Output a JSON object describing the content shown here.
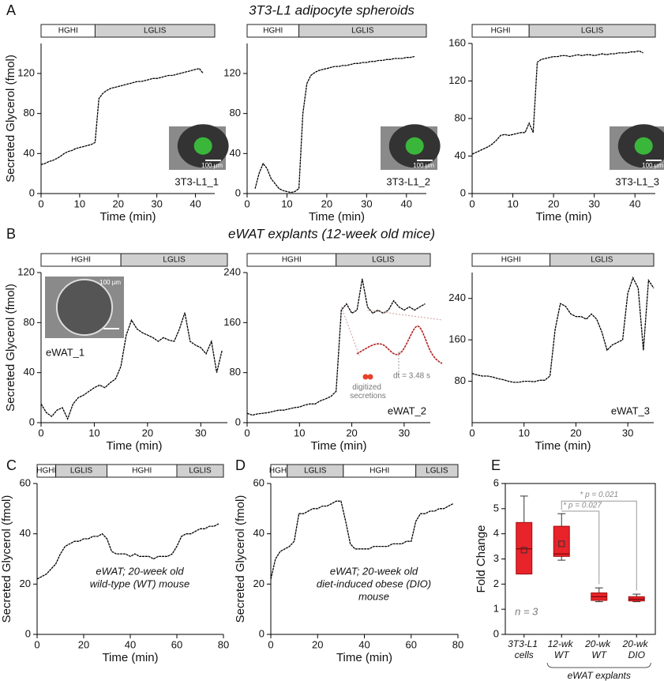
{
  "sections": [
    {
      "label": "A",
      "title": "3T3-L1 adipocyte spheroids"
    },
    {
      "label": "B",
      "title": "eWAT explants (12-week old mice)"
    },
    {
      "label": "C"
    },
    {
      "label": "D"
    },
    {
      "label": "E"
    }
  ],
  "chart_data": [
    {
      "type": "line",
      "ylabel": "Secreted Glycerol (fmol)",
      "xlabel": "Time (min)",
      "color": "#000000",
      "xlim": [
        0,
        45
      ],
      "xticks": [
        0,
        10,
        20,
        30,
        40
      ],
      "ylim": [
        0,
        150
      ],
      "yticks": [
        0,
        40,
        80,
        120
      ],
      "phases": [
        {
          "label": "HGHI",
          "start": 0,
          "end": 14
        },
        {
          "label": "LGLIS",
          "start": 14,
          "end": 45
        }
      ],
      "inset_label": "3T3-L1_1",
      "scale_bar": "100 µm",
      "x": [
        0,
        1,
        2,
        3,
        4,
        5,
        6,
        7,
        8,
        9,
        10,
        11,
        12,
        13,
        14,
        15,
        16,
        17,
        18,
        19,
        20,
        21,
        22,
        23,
        24,
        25,
        26,
        27,
        28,
        29,
        30,
        31,
        32,
        33,
        34,
        35,
        36,
        37,
        38,
        39,
        40,
        41,
        42
      ],
      "values": [
        29,
        30,
        32,
        33,
        35,
        37,
        40,
        42,
        43,
        45,
        46,
        47,
        48,
        49,
        51,
        95,
        100,
        103,
        105,
        106,
        107,
        108,
        109,
        110,
        111,
        112,
        112,
        113,
        114,
        115,
        115,
        116,
        117,
        118,
        118,
        119,
        120,
        121,
        122,
        123,
        124,
        125,
        120
      ]
    },
    {
      "type": "line",
      "xlabel": "Time (min)",
      "color": "#000000",
      "xlim": [
        0,
        45
      ],
      "xticks": [
        0,
        10,
        20,
        30,
        40
      ],
      "ylim": [
        0,
        150
      ],
      "yticks": [
        0,
        40,
        80,
        120
      ],
      "phases": [
        {
          "label": "HGHI",
          "start": 0,
          "end": 13
        },
        {
          "label": "LGLIS",
          "start": 13,
          "end": 45
        }
      ],
      "inset_label": "3T3-L1_2",
      "scale_bar": "100 µm",
      "x": [
        2,
        3,
        4,
        5,
        6,
        7,
        8,
        9,
        10,
        11,
        12,
        13,
        14,
        15,
        16,
        17,
        18,
        19,
        20,
        21,
        22,
        23,
        24,
        25,
        26,
        27,
        28,
        29,
        30,
        31,
        32,
        33,
        34,
        35,
        36,
        37,
        38,
        39,
        40,
        41,
        42
      ],
      "values": [
        5,
        20,
        30,
        25,
        15,
        10,
        5,
        3,
        2,
        1,
        2,
        5,
        80,
        110,
        118,
        121,
        123,
        124,
        125,
        126,
        127,
        127,
        128,
        128,
        129,
        130,
        130,
        131,
        131,
        132,
        132,
        133,
        133,
        134,
        134,
        135,
        135,
        135,
        136,
        136,
        137
      ]
    },
    {
      "type": "line",
      "xlabel": "Time (min)",
      "color": "#000000",
      "xlim": [
        0,
        45
      ],
      "xticks": [
        0,
        10,
        20,
        30,
        40
      ],
      "ylim": [
        0,
        160
      ],
      "yticks": [
        0,
        40,
        80,
        120,
        160
      ],
      "phases": [
        {
          "label": "HGHI",
          "start": 0,
          "end": 14
        },
        {
          "label": "LGLIS",
          "start": 14,
          "end": 45
        }
      ],
      "inset_label": "3T3-L1_3",
      "scale_bar": "100 µm",
      "x": [
        0,
        1,
        2,
        3,
        4,
        5,
        6,
        7,
        8,
        9,
        10,
        11,
        12,
        13,
        14,
        15,
        16,
        17,
        18,
        19,
        20,
        21,
        22,
        23,
        24,
        25,
        26,
        27,
        28,
        29,
        30,
        31,
        32,
        33,
        34,
        35,
        36,
        37,
        38,
        39,
        40,
        41,
        42
      ],
      "values": [
        42,
        44,
        46,
        48,
        50,
        53,
        57,
        62,
        63,
        62,
        63,
        64,
        65,
        65,
        75,
        65,
        140,
        143,
        144,
        145,
        146,
        146,
        147,
        147,
        146,
        147,
        148,
        147,
        148,
        148,
        147,
        148,
        149,
        148,
        149,
        149,
        150,
        150,
        150,
        151,
        151,
        152,
        150
      ]
    },
    {
      "type": "line",
      "ylabel": "Secreted Glycerol (fmol)",
      "xlabel": "Time (min)",
      "color": "#000000",
      "xlim": [
        0,
        35
      ],
      "xticks": [
        0,
        10,
        20,
        30
      ],
      "ylim": [
        0,
        120
      ],
      "yticks": [
        0,
        40,
        80,
        120
      ],
      "phases": [
        {
          "label": "HGHI",
          "start": 0,
          "end": 15
        },
        {
          "label": "LGLIS",
          "start": 15,
          "end": 35
        }
      ],
      "inset_label": "eWAT_1",
      "scale_bar": "100 µm",
      "x": [
        0,
        1,
        2,
        3,
        4,
        5,
        6,
        7,
        8,
        9,
        10,
        11,
        12,
        13,
        14,
        15,
        16,
        17,
        18,
        19,
        20,
        21,
        22,
        23,
        24,
        25,
        26,
        27,
        28,
        29,
        30,
        31,
        32,
        33,
        34
      ],
      "values": [
        15,
        8,
        5,
        10,
        12,
        3,
        15,
        20,
        22,
        25,
        28,
        30,
        28,
        32,
        35,
        45,
        70,
        82,
        75,
        72,
        70,
        68,
        65,
        68,
        66,
        65,
        75,
        88,
        65,
        62,
        60,
        55,
        65,
        40,
        58
      ]
    },
    {
      "type": "line",
      "xlabel": "Time (min)",
      "color": "#000000",
      "xlim": [
        0,
        35
      ],
      "xticks": [
        0,
        10,
        20,
        30
      ],
      "ylim": [
        0,
        240
      ],
      "yticks": [
        0,
        80,
        160,
        240
      ],
      "phases": [
        {
          "label": "HGHI",
          "start": 0,
          "end": 17
        },
        {
          "label": "LGLIS",
          "start": 17,
          "end": 35
        }
      ],
      "inset_label": "eWAT_2",
      "annotations": [
        "digitized secretions",
        "dt = 3.48 s"
      ],
      "x": [
        0,
        1,
        2,
        3,
        4,
        5,
        6,
        7,
        8,
        9,
        10,
        11,
        12,
        13,
        14,
        15,
        16,
        17,
        18,
        19,
        20,
        21,
        22,
        23,
        24,
        25,
        26,
        27,
        28,
        29,
        30,
        31,
        32,
        33,
        34
      ],
      "values": [
        15,
        12,
        14,
        15,
        16,
        18,
        20,
        20,
        22,
        24,
        25,
        28,
        30,
        30,
        35,
        38,
        42,
        50,
        180,
        190,
        175,
        180,
        230,
        185,
        175,
        180,
        175,
        180,
        195,
        185,
        180,
        185,
        180,
        185,
        190
      ]
    },
    {
      "type": "line",
      "xlabel": "Time (min)",
      "color": "#000000",
      "xlim": [
        0,
        35
      ],
      "xticks": [
        0,
        10,
        20,
        30
      ],
      "ylim": [
        0,
        290
      ],
      "yticks": [
        80,
        160,
        240
      ],
      "phases": [
        {
          "label": "HGHI",
          "start": 0,
          "end": 15
        },
        {
          "label": "LGLIS",
          "start": 15,
          "end": 35
        }
      ],
      "inset_label": "eWAT_3",
      "x": [
        0,
        1,
        2,
        3,
        4,
        5,
        6,
        7,
        8,
        9,
        10,
        11,
        12,
        13,
        14,
        15,
        16,
        17,
        18,
        19,
        20,
        21,
        22,
        23,
        24,
        25,
        26,
        27,
        28,
        29,
        30,
        31,
        32,
        33,
        34,
        35
      ],
      "values": [
        95,
        92,
        90,
        90,
        88,
        85,
        83,
        80,
        78,
        78,
        80,
        80,
        79,
        82,
        82,
        90,
        180,
        230,
        225,
        210,
        205,
        205,
        200,
        210,
        200,
        175,
        140,
        150,
        155,
        160,
        250,
        280,
        260,
        140,
        275,
        260
      ]
    },
    {
      "type": "line",
      "ylabel": "Secreted Glycerol (fmol)",
      "xlabel": "Time (min)",
      "color": "#000000",
      "xlim": [
        0,
        80
      ],
      "xticks": [
        0,
        20,
        40,
        60,
        80
      ],
      "ylim": [
        0,
        60
      ],
      "yticks": [
        0,
        20,
        40,
        60
      ],
      "phases": [
        {
          "label": "HGHI",
          "start": 0,
          "end": 8
        },
        {
          "label": "LGLIS",
          "start": 8,
          "end": 30
        },
        {
          "label": "HGHI",
          "start": 30,
          "end": 60
        },
        {
          "label": "LGLIS",
          "start": 60,
          "end": 80
        }
      ],
      "note": [
        "eWAT; 20-week old",
        "wild-type (WT) mouse"
      ],
      "x": [
        0,
        2,
        4,
        6,
        8,
        10,
        12,
        14,
        16,
        18,
        20,
        22,
        24,
        26,
        28,
        30,
        32,
        34,
        36,
        38,
        40,
        42,
        44,
        46,
        48,
        50,
        52,
        54,
        56,
        58,
        60,
        62,
        64,
        66,
        68,
        70,
        72,
        74,
        76,
        78
      ],
      "values": [
        22,
        23,
        24,
        26,
        28,
        32,
        35,
        36,
        37,
        37,
        38,
        38,
        39,
        39,
        40,
        38,
        33,
        32,
        32,
        32,
        31,
        32,
        31,
        31,
        31,
        30,
        31,
        31,
        31,
        32,
        35,
        39,
        40,
        40,
        41,
        42,
        42,
        43,
        43,
        44
      ]
    },
    {
      "type": "line",
      "ylabel": "Secreted Glycerol (fmol)",
      "xlabel": "Time (min)",
      "color": "#000000",
      "xlim": [
        0,
        80
      ],
      "xticks": [
        0,
        20,
        40,
        60,
        80
      ],
      "ylim": [
        0,
        60
      ],
      "yticks": [
        0,
        20,
        40,
        60
      ],
      "phases": [
        {
          "label": "HGHI",
          "start": 0,
          "end": 7
        },
        {
          "label": "LGLIS",
          "start": 7,
          "end": 31
        },
        {
          "label": "HGHI",
          "start": 31,
          "end": 62
        },
        {
          "label": "LGLIS",
          "start": 62,
          "end": 80
        }
      ],
      "note": [
        "eWAT; 20-week old",
        "diet-induced obese (DIO)",
        "mouse"
      ],
      "x": [
        0,
        2,
        4,
        6,
        8,
        10,
        12,
        14,
        16,
        18,
        20,
        22,
        24,
        26,
        28,
        30,
        32,
        34,
        36,
        38,
        40,
        42,
        44,
        46,
        48,
        50,
        52,
        54,
        56,
        58,
        60,
        62,
        64,
        66,
        68,
        70,
        72,
        74,
        76,
        78
      ],
      "values": [
        22,
        30,
        33,
        34,
        35,
        37,
        48,
        48,
        49,
        50,
        50,
        51,
        51,
        52,
        53,
        53,
        45,
        36,
        34,
        34,
        34,
        34,
        35,
        35,
        35,
        35,
        36,
        36,
        36,
        37,
        37,
        45,
        48,
        48,
        49,
        49,
        50,
        50,
        51,
        52
      ]
    },
    {
      "type": "box",
      "ylabel": "Fold Change",
      "color": "#e8232a",
      "ylim": [
        0,
        6
      ],
      "yticks": [
        0,
        1,
        2,
        3,
        4,
        5,
        6
      ],
      "categories": [
        "3T3-L1 cells",
        "12-wk WT",
        "20-wk WT",
        "20-wk DIO"
      ],
      "boxes": [
        {
          "min": 2.4,
          "q1": 2.4,
          "median": 3.4,
          "q3": 4.45,
          "max": 5.5,
          "mean": 3.35
        },
        {
          "min": 2.95,
          "q1": 3.1,
          "median": 3.2,
          "q3": 4.3,
          "max": 4.8,
          "mean": 3.6
        },
        {
          "min": 1.3,
          "q1": 1.35,
          "median": 1.5,
          "q3": 1.65,
          "max": 1.85
        },
        {
          "min": 1.3,
          "q1": 1.33,
          "median": 1.4,
          "q3": 1.5,
          "max": 1.6
        }
      ],
      "group_label": "eWAT explants",
      "sample_size": "n = 3",
      "significance": [
        "* p = 0.021",
        "* p = 0.027"
      ]
    }
  ]
}
